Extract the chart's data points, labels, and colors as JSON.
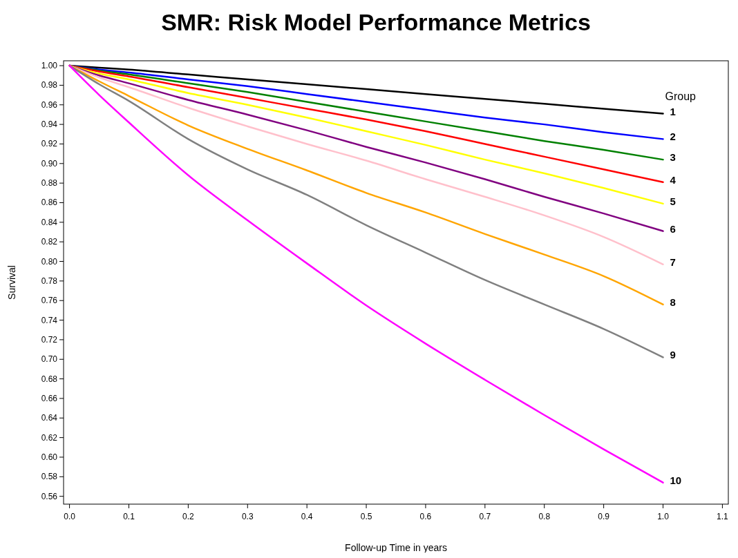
{
  "chart_data": {
    "type": "line",
    "title": "SMR: Risk Model Performance Metrics",
    "xlabel": "Follow-up Time in years",
    "ylabel": "Survival",
    "legend_title": "Group",
    "legend": "right",
    "grid": false,
    "marker": "none",
    "line_style": "solid",
    "x": [
      0,
      0.05,
      0.1,
      0.2,
      0.3,
      0.4,
      0.5,
      0.6,
      0.7,
      0.8,
      0.9,
      1.0
    ],
    "xlim": [
      -0.01,
      1.11
    ],
    "xticks": [
      {
        "value": 0,
        "label": "0.0"
      },
      0.1,
      0.2,
      0.3,
      0.4,
      0.5,
      0.6,
      0.7,
      0.8,
      0.9,
      {
        "value": 1,
        "label": "1.0"
      },
      1.1
    ],
    "ylim": [
      0.552,
      1.005
    ],
    "yticks": [
      0.56,
      {
        "value": 0.58,
        "label": "0.58"
      },
      {
        "value": 0.6,
        "label": "0.60"
      },
      0.62,
      0.64,
      0.66,
      0.68,
      {
        "value": 0.7,
        "label": "0.70"
      },
      0.72,
      0.74,
      0.76,
      0.78,
      {
        "value": 0.8,
        "label": "0.80"
      },
      0.82,
      0.84,
      0.86,
      0.88,
      {
        "value": 0.9,
        "label": "0.90"
      },
      0.92,
      0.94,
      0.96,
      0.98,
      {
        "value": 1,
        "label": "1.00"
      }
    ],
    "series": [
      {
        "name": "1",
        "color": "#000000",
        "values": [
          1,
          0.998,
          0.996,
          0.991,
          0.986,
          0.981,
          0.976,
          0.971,
          0.966,
          0.961,
          0.956,
          0.951
        ]
      },
      {
        "name": "2",
        "color": "#0000ff",
        "values": [
          1,
          0.996,
          0.993,
          0.986,
          0.979,
          0.971,
          0.963,
          0.955,
          0.947,
          0.94,
          0.932,
          0.925
        ]
      },
      {
        "name": "3",
        "color": "#008000",
        "values": [
          1,
          0.995,
          0.991,
          0.982,
          0.973,
          0.963,
          0.953,
          0.943,
          0.933,
          0.923,
          0.914,
          0.904
        ]
      },
      {
        "name": "4",
        "color": "#ff0000",
        "values": [
          1,
          0.994,
          0.989,
          0.978,
          0.967,
          0.956,
          0.945,
          0.933,
          0.92,
          0.907,
          0.894,
          0.881
        ]
      },
      {
        "name": "5",
        "color": "#ffff00",
        "values": [
          1,
          0.992,
          0.986,
          0.972,
          0.96,
          0.947,
          0.933,
          0.919,
          0.904,
          0.89,
          0.875,
          0.859
        ]
      },
      {
        "name": "6",
        "color": "#800080",
        "values": [
          1,
          0.99,
          0.982,
          0.965,
          0.95,
          0.934,
          0.917,
          0.901,
          0.884,
          0.866,
          0.849,
          0.831
        ]
      },
      {
        "name": "7",
        "color": "#ffc0cb",
        "values": [
          1,
          0.988,
          0.978,
          0.957,
          0.938,
          0.92,
          0.903,
          0.884,
          0.866,
          0.847,
          0.825,
          0.797
        ]
      },
      {
        "name": "8",
        "color": "#ffa500",
        "values": [
          1,
          0.984,
          0.969,
          0.939,
          0.915,
          0.893,
          0.87,
          0.85,
          0.828,
          0.807,
          0.785,
          0.756
        ]
      },
      {
        "name": "9",
        "color": "#808080",
        "values": [
          1,
          0.981,
          0.964,
          0.925,
          0.894,
          0.868,
          0.837,
          0.809,
          0.781,
          0.756,
          0.731,
          0.702
        ]
      },
      {
        "name": "10",
        "color": "#ff00ff",
        "values": [
          1,
          0.97,
          0.942,
          0.888,
          0.842,
          0.798,
          0.755,
          0.716,
          0.679,
          0.643,
          0.608,
          0.574
        ]
      }
    ]
  }
}
